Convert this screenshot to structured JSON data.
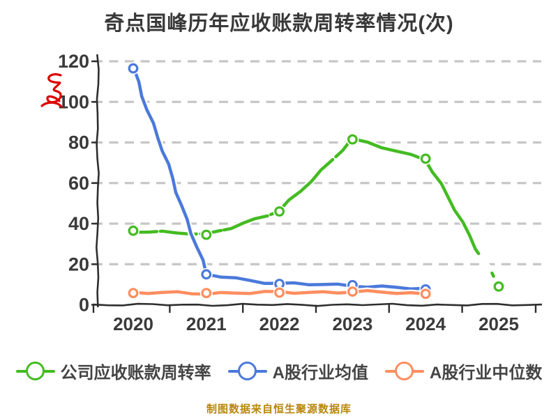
{
  "title": "奇点国峰历年应收账款周转率情况(次)",
  "source_note": "制图数据来自恒生聚源数据库",
  "scribble": {
    "meaning": "red hand-drawn scribble left of y-axis"
  },
  "colors": {
    "background": "#ffffff",
    "title_text": "#383838",
    "axis": "#2e2e2e",
    "tick_label": "#3a3a3a",
    "gridline": "#c6c6c6",
    "legend_text": "#444444",
    "source_note": "#b8860b",
    "scribble": "#dd0000"
  },
  "chart_data": {
    "type": "line",
    "title": "奇点国峰历年应收账款周转率情况(次)",
    "style": "hand-drawn xkcd-like, open circle markers, white halo around lines",
    "categories": [
      "2020",
      "2021",
      "2022",
      "2023",
      "2024",
      "2025"
    ],
    "xlabel": "",
    "ylabel": "",
    "ylim": [
      0,
      120
    ],
    "y_ticks": [
      0,
      20,
      40,
      60,
      80,
      100,
      120
    ],
    "grid": "horizontal dashed light-gray",
    "legend_position": "bottom",
    "series": [
      {
        "name": "公司应收账款周转率",
        "color": "#44bb22",
        "marker": "open-circle",
        "values": [
          36.5,
          34.5,
          46,
          81.5,
          72,
          9
        ]
      },
      {
        "name": "A股行业均值",
        "color": "#4b79db",
        "marker": "open-circle",
        "values": [
          116.5,
          15,
          10.3,
          9.7,
          7.6,
          null
        ]
      },
      {
        "name": "A股行业中位数",
        "color": "#ff8d5f",
        "marker": "open-circle",
        "values": [
          5.8,
          5.8,
          6,
          6.5,
          5.4,
          null
        ]
      }
    ]
  }
}
